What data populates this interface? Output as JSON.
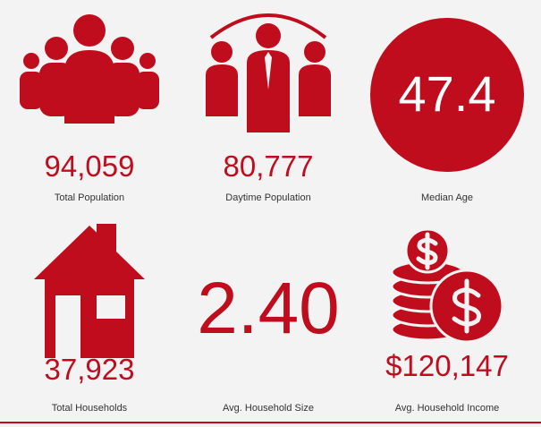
{
  "items": [
    {
      "value": "94,059",
      "label": "Total Population"
    },
    {
      "value": "80,777",
      "label": "Daytime Population"
    },
    {
      "value": "47.4",
      "label": "Median Age"
    },
    {
      "value": "37,923",
      "label": "Total Households"
    },
    {
      "value": "2.40",
      "label": "Avg. Household Size"
    },
    {
      "value": "$120,147",
      "label": "Avg. Household Income"
    }
  ]
}
